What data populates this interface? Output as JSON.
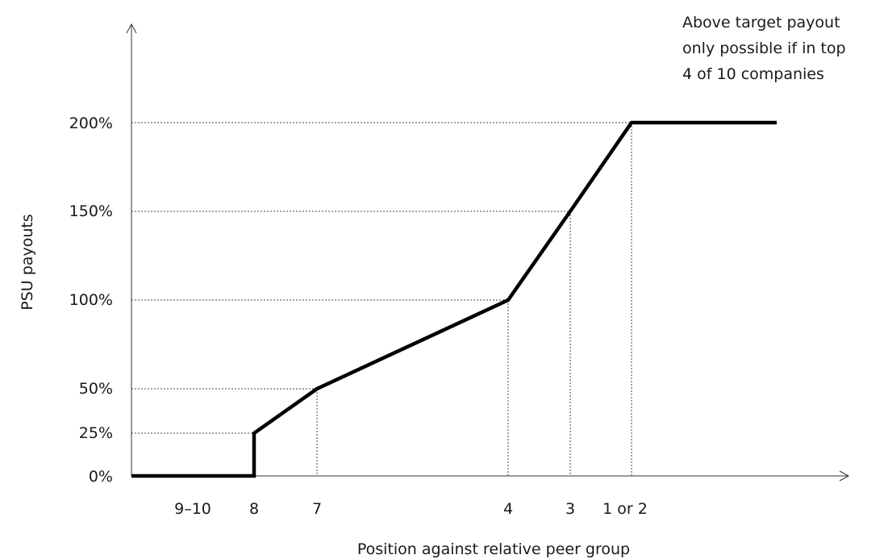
{
  "chart_data": {
    "type": "line",
    "title": "",
    "xlabel": "Position against relative peer group",
    "ylabel": "PSU payouts",
    "y_ticks": [
      "0%",
      "25%",
      "50%",
      "100%",
      "150%",
      "200%"
    ],
    "x_tick_labels": [
      "9–10",
      "8",
      "7",
      "4",
      "3",
      "1 or 2"
    ],
    "ylim": [
      0,
      200
    ],
    "grid": "dotted reference lines at marked points",
    "legend": "none",
    "annotation": [
      "Above target payout",
      "only possible if in top",
      "4 of 10 companies"
    ],
    "series": [
      {
        "values_by_position": [
          {
            "position": "9–10",
            "payout": 0
          },
          {
            "position": "8",
            "payout": 0
          },
          {
            "position": "8",
            "payout": 25
          },
          {
            "position": "7",
            "payout": 50
          },
          {
            "position": "4",
            "payout": 100
          },
          {
            "position": "3",
            "payout": 150
          },
          {
            "position": "1 or 2",
            "payout": 200
          },
          {
            "position": "1 or 2",
            "payout": 200
          }
        ]
      }
    ],
    "line_color": "#000000",
    "reference_line_color": "#444444"
  }
}
